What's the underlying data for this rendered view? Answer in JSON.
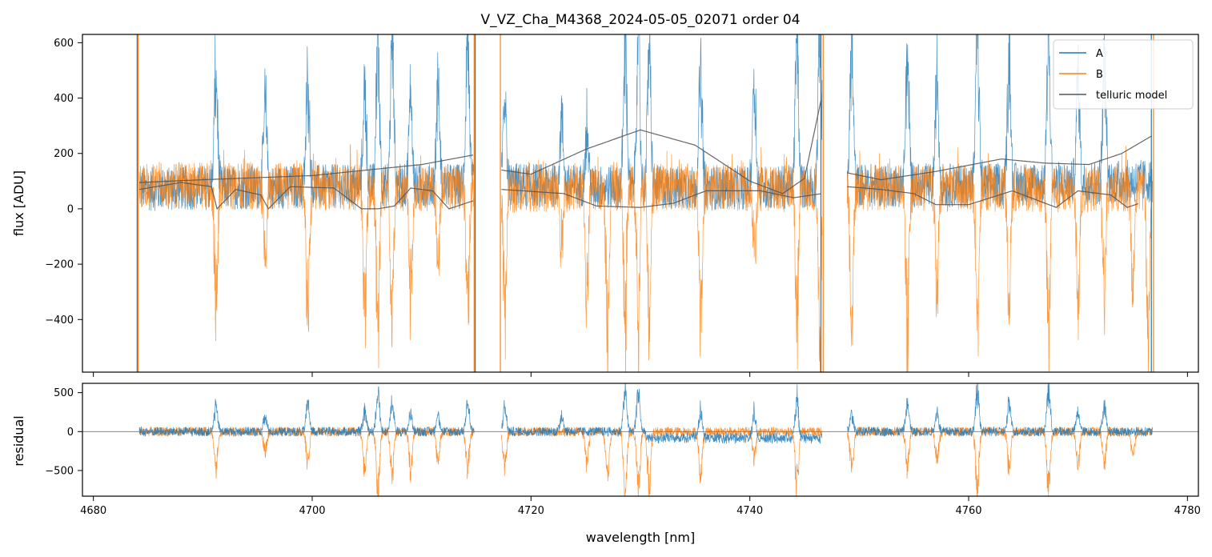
{
  "chart_data": [
    {
      "panel": "top",
      "type": "line",
      "title": "V_VZ_Cha_M4368_2024-05-05_02071  order 04",
      "xlabel": "",
      "ylabel": "flux [ADU]",
      "xlim": [
        4679,
        4781
      ],
      "ylim": [
        -590,
        630
      ],
      "x_ticks": [
        4680,
        4700,
        4720,
        4740,
        4760,
        4780
      ],
      "y_ticks": [
        -400,
        -200,
        0,
        200,
        400,
        600
      ],
      "y_tick_labels": [
        "−400",
        "−200",
        "0",
        "200",
        "400",
        "600"
      ],
      "legend_position": "top-right",
      "legend": [
        "A",
        "B",
        "telluric model"
      ],
      "colors": {
        "A": "#1f77b4",
        "B": "#ff7f0e",
        "telluric model": "#555555"
      },
      "segments": [
        [
          4684.2,
          4714.8
        ],
        [
          4717.3,
          4746.6
        ],
        [
          4748.9,
          4776.8
        ]
      ],
      "series": [
        {
          "name": "A",
          "continuum": [
            [
              4684,
              70
            ],
            [
              4690,
              75
            ],
            [
              4700,
              80
            ],
            [
              4714.8,
              85
            ],
            [
              4717.3,
              90
            ],
            [
              4725,
              80
            ],
            [
              4735,
              75
            ],
            [
              4746.6,
              80
            ],
            [
              4748.9,
              85
            ],
            [
              4760,
              85
            ],
            [
              4776.8,
              100
            ]
          ],
          "emission_peaks": [
            [
              4691.2,
              480
            ],
            [
              4695.7,
              360
            ],
            [
              4699.6,
              460
            ],
            [
              4704.8,
              420
            ],
            [
              4706.0,
              630
            ],
            [
              4707.3,
              600
            ],
            [
              4709.0,
              380
            ],
            [
              4711.5,
              380
            ],
            [
              4714.2,
              600
            ],
            [
              4717.6,
              360
            ],
            [
              4722.8,
              260
            ],
            [
              4725.1,
              260
            ],
            [
              4728.6,
              630
            ],
            [
              4729.8,
              630
            ],
            [
              4730.8,
              620
            ],
            [
              4735.5,
              500
            ],
            [
              4740.4,
              470
            ],
            [
              4744.3,
              620
            ],
            [
              4746.4,
              630
            ],
            [
              4749.3,
              630
            ],
            [
              4754.4,
              540
            ],
            [
              4757.1,
              440
            ],
            [
              4760.8,
              630
            ],
            [
              4763.7,
              530
            ],
            [
              4767.3,
              630
            ],
            [
              4770.0,
              460
            ],
            [
              4772.4,
              520
            ]
          ]
        },
        {
          "name": "B",
          "continuum": [
            [
              4684,
              85
            ],
            [
              4700,
              80
            ],
            [
              4714.8,
              75
            ],
            [
              4717.3,
              70
            ],
            [
              4735,
              80
            ],
            [
              4746.6,
              70
            ],
            [
              4748.9,
              75
            ],
            [
              4776.8,
              70
            ]
          ],
          "absorption_dips": [
            [
              4691.2,
              -520
            ],
            [
              4695.7,
              -330
            ],
            [
              4699.6,
              -560
            ],
            [
              4704.8,
              -560
            ],
            [
              4706.0,
              -590
            ],
            [
              4707.3,
              -590
            ],
            [
              4709.0,
              -470
            ],
            [
              4711.5,
              -330
            ],
            [
              4714.2,
              -550
            ],
            [
              4717.6,
              -590
            ],
            [
              4722.8,
              -260
            ],
            [
              4725.1,
              -470
            ],
            [
              4727.0,
              -590
            ],
            [
              4728.6,
              -590
            ],
            [
              4729.8,
              -590
            ],
            [
              4730.8,
              -590
            ],
            [
              4735.5,
              -590
            ],
            [
              4740.4,
              -300
            ],
            [
              4744.3,
              -590
            ],
            [
              4746.4,
              -590
            ],
            [
              4749.3,
              -590
            ],
            [
              4754.4,
              -590
            ],
            [
              4757.1,
              -440
            ],
            [
              4760.8,
              -590
            ],
            [
              4763.7,
              -460
            ],
            [
              4767.3,
              -590
            ],
            [
              4770.0,
              -470
            ],
            [
              4772.4,
              -480
            ],
            [
              4775.0,
              -450
            ],
            [
              4776.4,
              -560
            ]
          ]
        },
        {
          "name": "telluric model",
          "upper_curve": [
            [
              4684.2,
              95
            ],
            [
              4690,
              105
            ],
            [
              4700,
              120
            ],
            [
              4710,
              160
            ],
            [
              4714.8,
              195
            ],
            [
              4717.3,
              140
            ],
            [
              4720,
              125
            ],
            [
              4725,
              215
            ],
            [
              4730,
              285
            ],
            [
              4735,
              230
            ],
            [
              4740,
              100
            ],
            [
              4743,
              55
            ],
            [
              4745,
              110
            ],
            [
              4746.6,
              410
            ],
            [
              4748.9,
              130
            ],
            [
              4752,
              105
            ],
            [
              4757,
              135
            ],
            [
              4763,
              180
            ],
            [
              4767,
              165
            ],
            [
              4771,
              160
            ],
            [
              4774,
              200
            ],
            [
              4776.8,
              265
            ]
          ],
          "lower_curve": [
            [
              4684.2,
              70
            ],
            [
              4688,
              95
            ],
            [
              4690.8,
              80
            ],
            [
              4691.3,
              0
            ],
            [
              4693,
              70
            ],
            [
              4695.3,
              50
            ],
            [
              4696,
              0
            ],
            [
              4698,
              80
            ],
            [
              4702,
              75
            ],
            [
              4704.5,
              0
            ],
            [
              4706,
              0
            ],
            [
              4707.5,
              10
            ],
            [
              4709,
              75
            ],
            [
              4711,
              65
            ],
            [
              4712.5,
              0
            ],
            [
              4714.8,
              30
            ],
            [
              4717.3,
              70
            ],
            [
              4723,
              55
            ],
            [
              4726,
              10
            ],
            [
              4730,
              5
            ],
            [
              4733,
              20
            ],
            [
              4736,
              65
            ],
            [
              4741,
              65
            ],
            [
              4744,
              40
            ],
            [
              4746.6,
              55
            ],
            [
              4748.9,
              80
            ],
            [
              4752,
              70
            ],
            [
              4755,
              55
            ],
            [
              4757,
              15
            ],
            [
              4760,
              15
            ],
            [
              4764,
              65
            ],
            [
              4768,
              5
            ],
            [
              4770,
              65
            ],
            [
              4773,
              50
            ],
            [
              4774.5,
              5
            ],
            [
              4775.6,
              20
            ]
          ]
        }
      ]
    },
    {
      "panel": "bottom",
      "type": "line",
      "title": "",
      "xlabel": "wavelength [nm]",
      "ylabel": "residual",
      "xlim": [
        4679,
        4781
      ],
      "ylim": [
        -830,
        620
      ],
      "x_ticks": [
        4680,
        4700,
        4720,
        4740,
        4760,
        4780
      ],
      "y_ticks": [
        -500,
        0,
        500
      ],
      "y_tick_labels": [
        "−500",
        "0",
        "500"
      ],
      "zero_line": true,
      "series": [
        {
          "name": "A",
          "peaks": [
            [
              4691.2,
              370
            ],
            [
              4695.7,
              200
            ],
            [
              4699.6,
              380
            ],
            [
              4704.8,
              300
            ],
            [
              4706.0,
              600
            ],
            [
              4707.3,
              420
            ],
            [
              4709.0,
              250
            ],
            [
              4711.5,
              260
            ],
            [
              4714.2,
              420
            ],
            [
              4717.6,
              330
            ],
            [
              4722.8,
              250
            ],
            [
              4728.6,
              600
            ],
            [
              4729.8,
              600
            ],
            [
              4735.5,
              380
            ],
            [
              4740.4,
              380
            ],
            [
              4744.3,
              560
            ],
            [
              4749.3,
              250
            ],
            [
              4754.4,
              400
            ],
            [
              4757.1,
              300
            ],
            [
              4760.8,
              600
            ],
            [
              4763.7,
              400
            ],
            [
              4767.3,
              600
            ],
            [
              4770.0,
              300
            ],
            [
              4772.4,
              360
            ]
          ]
        },
        {
          "name": "B",
          "dips": [
            [
              4691.2,
              -520
            ],
            [
              4695.7,
              -330
            ],
            [
              4699.6,
              -470
            ],
            [
              4704.8,
              -560
            ],
            [
              4706.0,
              -830
            ],
            [
              4707.3,
              -640
            ],
            [
              4709.0,
              -550
            ],
            [
              4711.5,
              -500
            ],
            [
              4714.2,
              -520
            ],
            [
              4717.6,
              -500
            ],
            [
              4725.1,
              -480
            ],
            [
              4727.0,
              -620
            ],
            [
              4728.6,
              -830
            ],
            [
              4729.8,
              -830
            ],
            [
              4730.8,
              -830
            ],
            [
              4735.5,
              -640
            ],
            [
              4740.4,
              -400
            ],
            [
              4744.3,
              -830
            ],
            [
              4749.3,
              -520
            ],
            [
              4754.4,
              -560
            ],
            [
              4757.1,
              -450
            ],
            [
              4760.8,
              -830
            ],
            [
              4763.7,
              -550
            ],
            [
              4767.3,
              -830
            ],
            [
              4770.0,
              -500
            ],
            [
              4772.4,
              -420
            ],
            [
              4775.0,
              -350
            ]
          ]
        }
      ]
    }
  ]
}
